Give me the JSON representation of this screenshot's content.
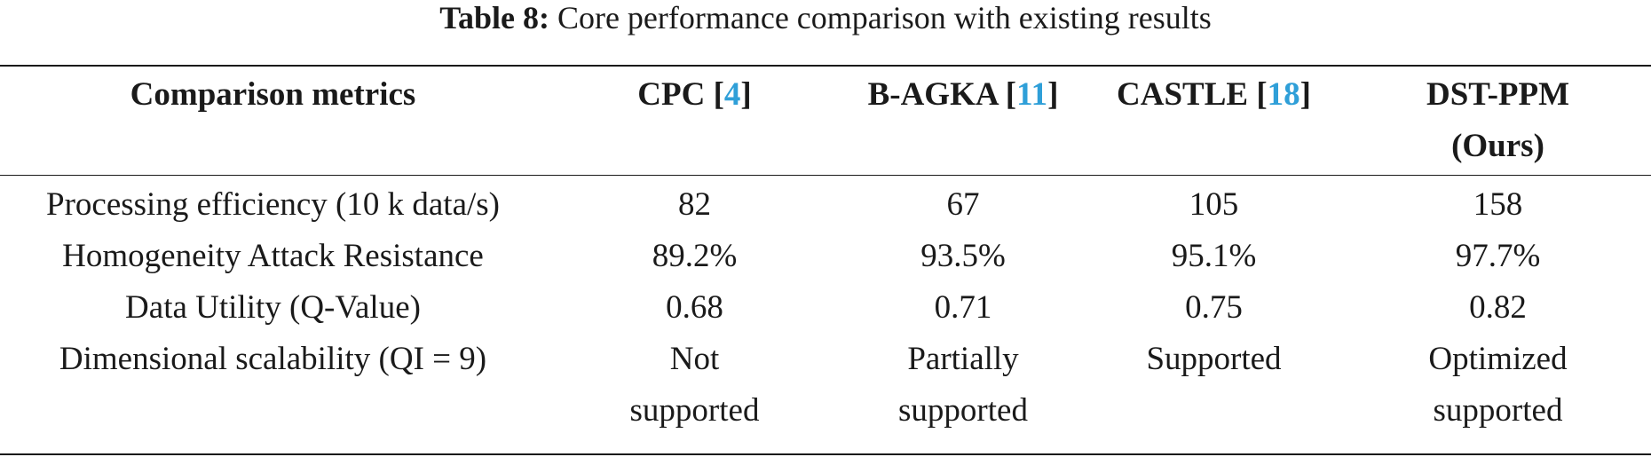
{
  "caption": {
    "label": "Table 8:",
    "text": "Core performance comparison with existing results"
  },
  "table": {
    "headers": [
      {
        "text": "Comparison metrics",
        "ref": ""
      },
      {
        "text": "CPC",
        "ref": "4"
      },
      {
        "text": "B-AGKA",
        "ref": "11"
      },
      {
        "text": "CASTLE",
        "ref": "18"
      },
      {
        "text": "DST-PPM",
        "line2": "(Ours)",
        "ref": ""
      }
    ],
    "rows": [
      {
        "metric": "Processing efficiency (10 k data/s)",
        "cpc": "82",
        "bagka": "67",
        "castle": "105",
        "dstppm": "158"
      },
      {
        "metric": "Homogeneity Attack Resistance",
        "cpc": "89.2%",
        "bagka": "93.5%",
        "castle": "95.1%",
        "dstppm": "97.7%"
      },
      {
        "metric": "Data Utility (Q-Value)",
        "cpc": "0.68",
        "bagka": "0.71",
        "castle": "0.75",
        "dstppm": "0.82"
      },
      {
        "metric": "Dimensional scalability (QI = 9)",
        "cpc": [
          "Not",
          "supported"
        ],
        "bagka": [
          "Partially",
          "supported"
        ],
        "castle": "Supported",
        "dstppm": [
          "Optimized",
          "supported"
        ]
      }
    ]
  }
}
